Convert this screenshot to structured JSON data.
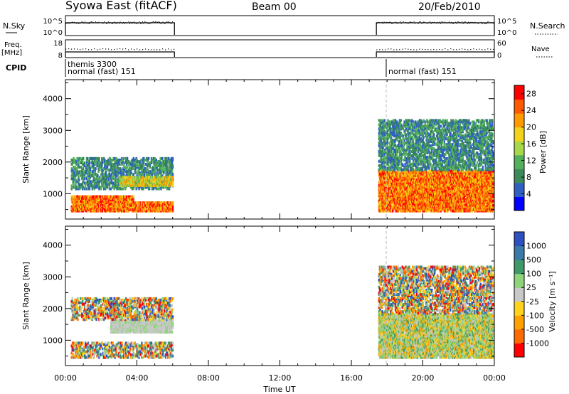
{
  "header": {
    "station": "Syowa East (fitACF)",
    "beam": "Beam 00",
    "date": "20/Feb/2010"
  },
  "strips": {
    "nsky": {
      "label": "N.Sky",
      "ticks": [
        "10^5",
        "10^0"
      ]
    },
    "nsearch": {
      "label": "N.Search",
      "ticks": [
        "10^5",
        "10^0"
      ]
    },
    "freq": {
      "label_line1": "Freq.",
      "label_line2": "[MHz]",
      "ticks": [
        "18",
        "8"
      ]
    },
    "nave": {
      "label": "Nave",
      "ticks": [
        "60",
        "0"
      ]
    },
    "cpid": {
      "label": "CPID",
      "segments": [
        {
          "line1": "themis 3300",
          "line2": "normal (fast) 151"
        },
        {
          "line1": "normal (fast) 151"
        }
      ]
    }
  },
  "chart_data": [
    {
      "type": "heatmap",
      "quantity": "power",
      "ylabel": "Slant Range [km]",
      "xlabel": "Time UT",
      "x_ticks": [
        "00:00",
        "04:00",
        "08:00",
        "12:00",
        "16:00",
        "20:00",
        "00:00"
      ],
      "x_range_hours": [
        0,
        24
      ],
      "y_ticks": [
        1000,
        2000,
        3000,
        4000
      ],
      "ylim": [
        200,
        4600
      ],
      "colorbar": {
        "label": "Power [dB]",
        "ticks": [
          4,
          8,
          12,
          16,
          20,
          24,
          28
        ],
        "range": [
          0,
          30
        ],
        "colors": [
          "#0000ff",
          "#2e5fc2",
          "#3b8a5a",
          "#52b05a",
          "#a8d84a",
          "#f2d21b",
          "#ff9a00",
          "#ff5a00",
          "#ff0000"
        ]
      },
      "observation_windows_hours": [
        [
          0,
          6.1
        ],
        [
          17.4,
          24
        ]
      ],
      "scatter_regions": [
        {
          "t": [
            0.3,
            6.0
          ],
          "range_km": [
            500,
            800
          ],
          "level": "high"
        },
        {
          "t": [
            0.3,
            3.8
          ],
          "range_km": [
            800,
            1000
          ],
          "level": "high"
        },
        {
          "t": [
            0.3,
            6.0
          ],
          "range_km": [
            1200,
            2200
          ],
          "level": "low"
        },
        {
          "t": [
            3.0,
            6.0
          ],
          "range_km": [
            1300,
            1600
          ],
          "level": "medium"
        },
        {
          "t": [
            17.5,
            24
          ],
          "range_km": [
            500,
            1800
          ],
          "level": "high"
        },
        {
          "t": [
            17.5,
            24
          ],
          "range_km": [
            1800,
            3400
          ],
          "level": "low"
        }
      ]
    },
    {
      "type": "heatmap",
      "quantity": "velocity",
      "ylabel": "Slant Range [km]",
      "xlabel": "Time UT",
      "x_ticks": [
        "00:00",
        "04:00",
        "08:00",
        "12:00",
        "16:00",
        "20:00",
        "00:00"
      ],
      "x_range_hours": [
        0,
        24
      ],
      "y_ticks": [
        1000,
        2000,
        3000,
        4000
      ],
      "ylim": [
        200,
        4600
      ],
      "colorbar": {
        "label": "Velocity [m s⁻¹]",
        "ticks": [
          "1000",
          "500",
          "100",
          "25",
          "-25",
          "-100",
          "-500",
          "-1000"
        ],
        "colors": [
          "#2f50c0",
          "#3a7aa8",
          "#3e9a6a",
          "#8fd47a",
          "#c8c8c8",
          "#ffd21b",
          "#ffa000",
          "#ff6a00",
          "#ff0000"
        ]
      },
      "observation_windows_hours": [
        [
          0,
          6.1
        ],
        [
          17.4,
          24
        ]
      ],
      "scatter_regions": [
        {
          "t": [
            0.3,
            6.0
          ],
          "range_km": [
            500,
            1000
          ],
          "level": "mixed"
        },
        {
          "t": [
            2.5,
            6.0
          ],
          "range_km": [
            1300,
            1700
          ],
          "level": "gray"
        },
        {
          "t": [
            0.3,
            6.0
          ],
          "range_km": [
            1700,
            2400
          ],
          "level": "mixed"
        },
        {
          "t": [
            17.5,
            24
          ],
          "range_km": [
            500,
            1900
          ],
          "level": "green"
        },
        {
          "t": [
            17.5,
            24
          ],
          "range_km": [
            1900,
            3400
          ],
          "level": "mixed"
        }
      ]
    }
  ]
}
